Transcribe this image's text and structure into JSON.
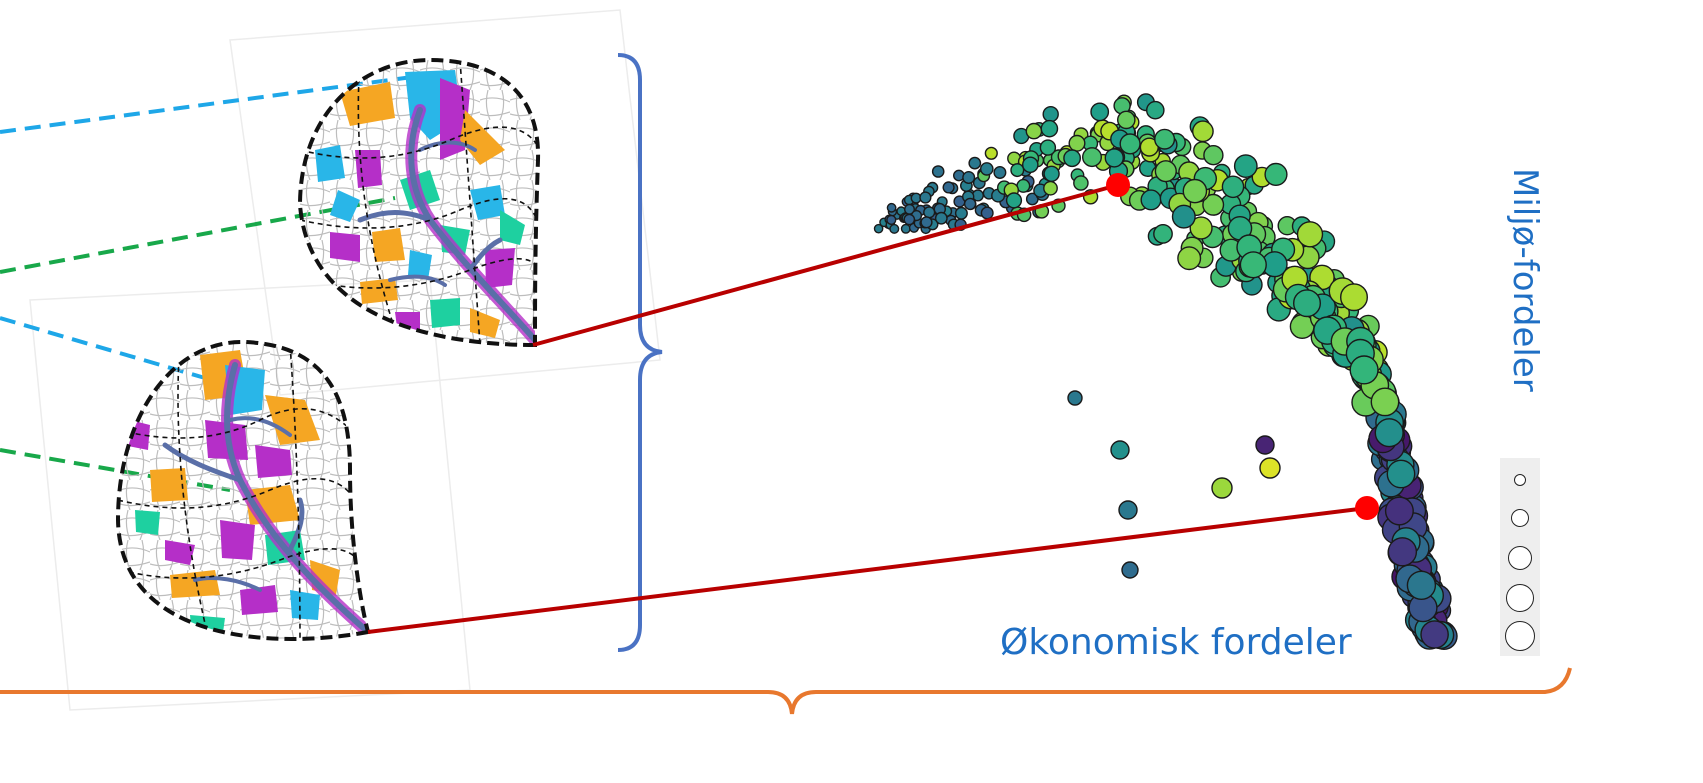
{
  "labels": {
    "x_axis": "Økonomisk fordeler",
    "y_axis": "Miljø-fordeler"
  },
  "colors": {
    "accent_blue": "#1f6fc4",
    "dashed_blue": "#1ea7e8",
    "dashed_green": "#18a84a",
    "link_red": "#b80000",
    "highlight_red": "#ff0000",
    "brace_blue": "#4a72c4",
    "brace_orange": "#e8782e"
  },
  "size_legend": {
    "items": [
      {
        "size": 1
      },
      {
        "size": 2
      },
      {
        "size": 3
      },
      {
        "size": 4
      },
      {
        "size": 5
      }
    ]
  }
}
